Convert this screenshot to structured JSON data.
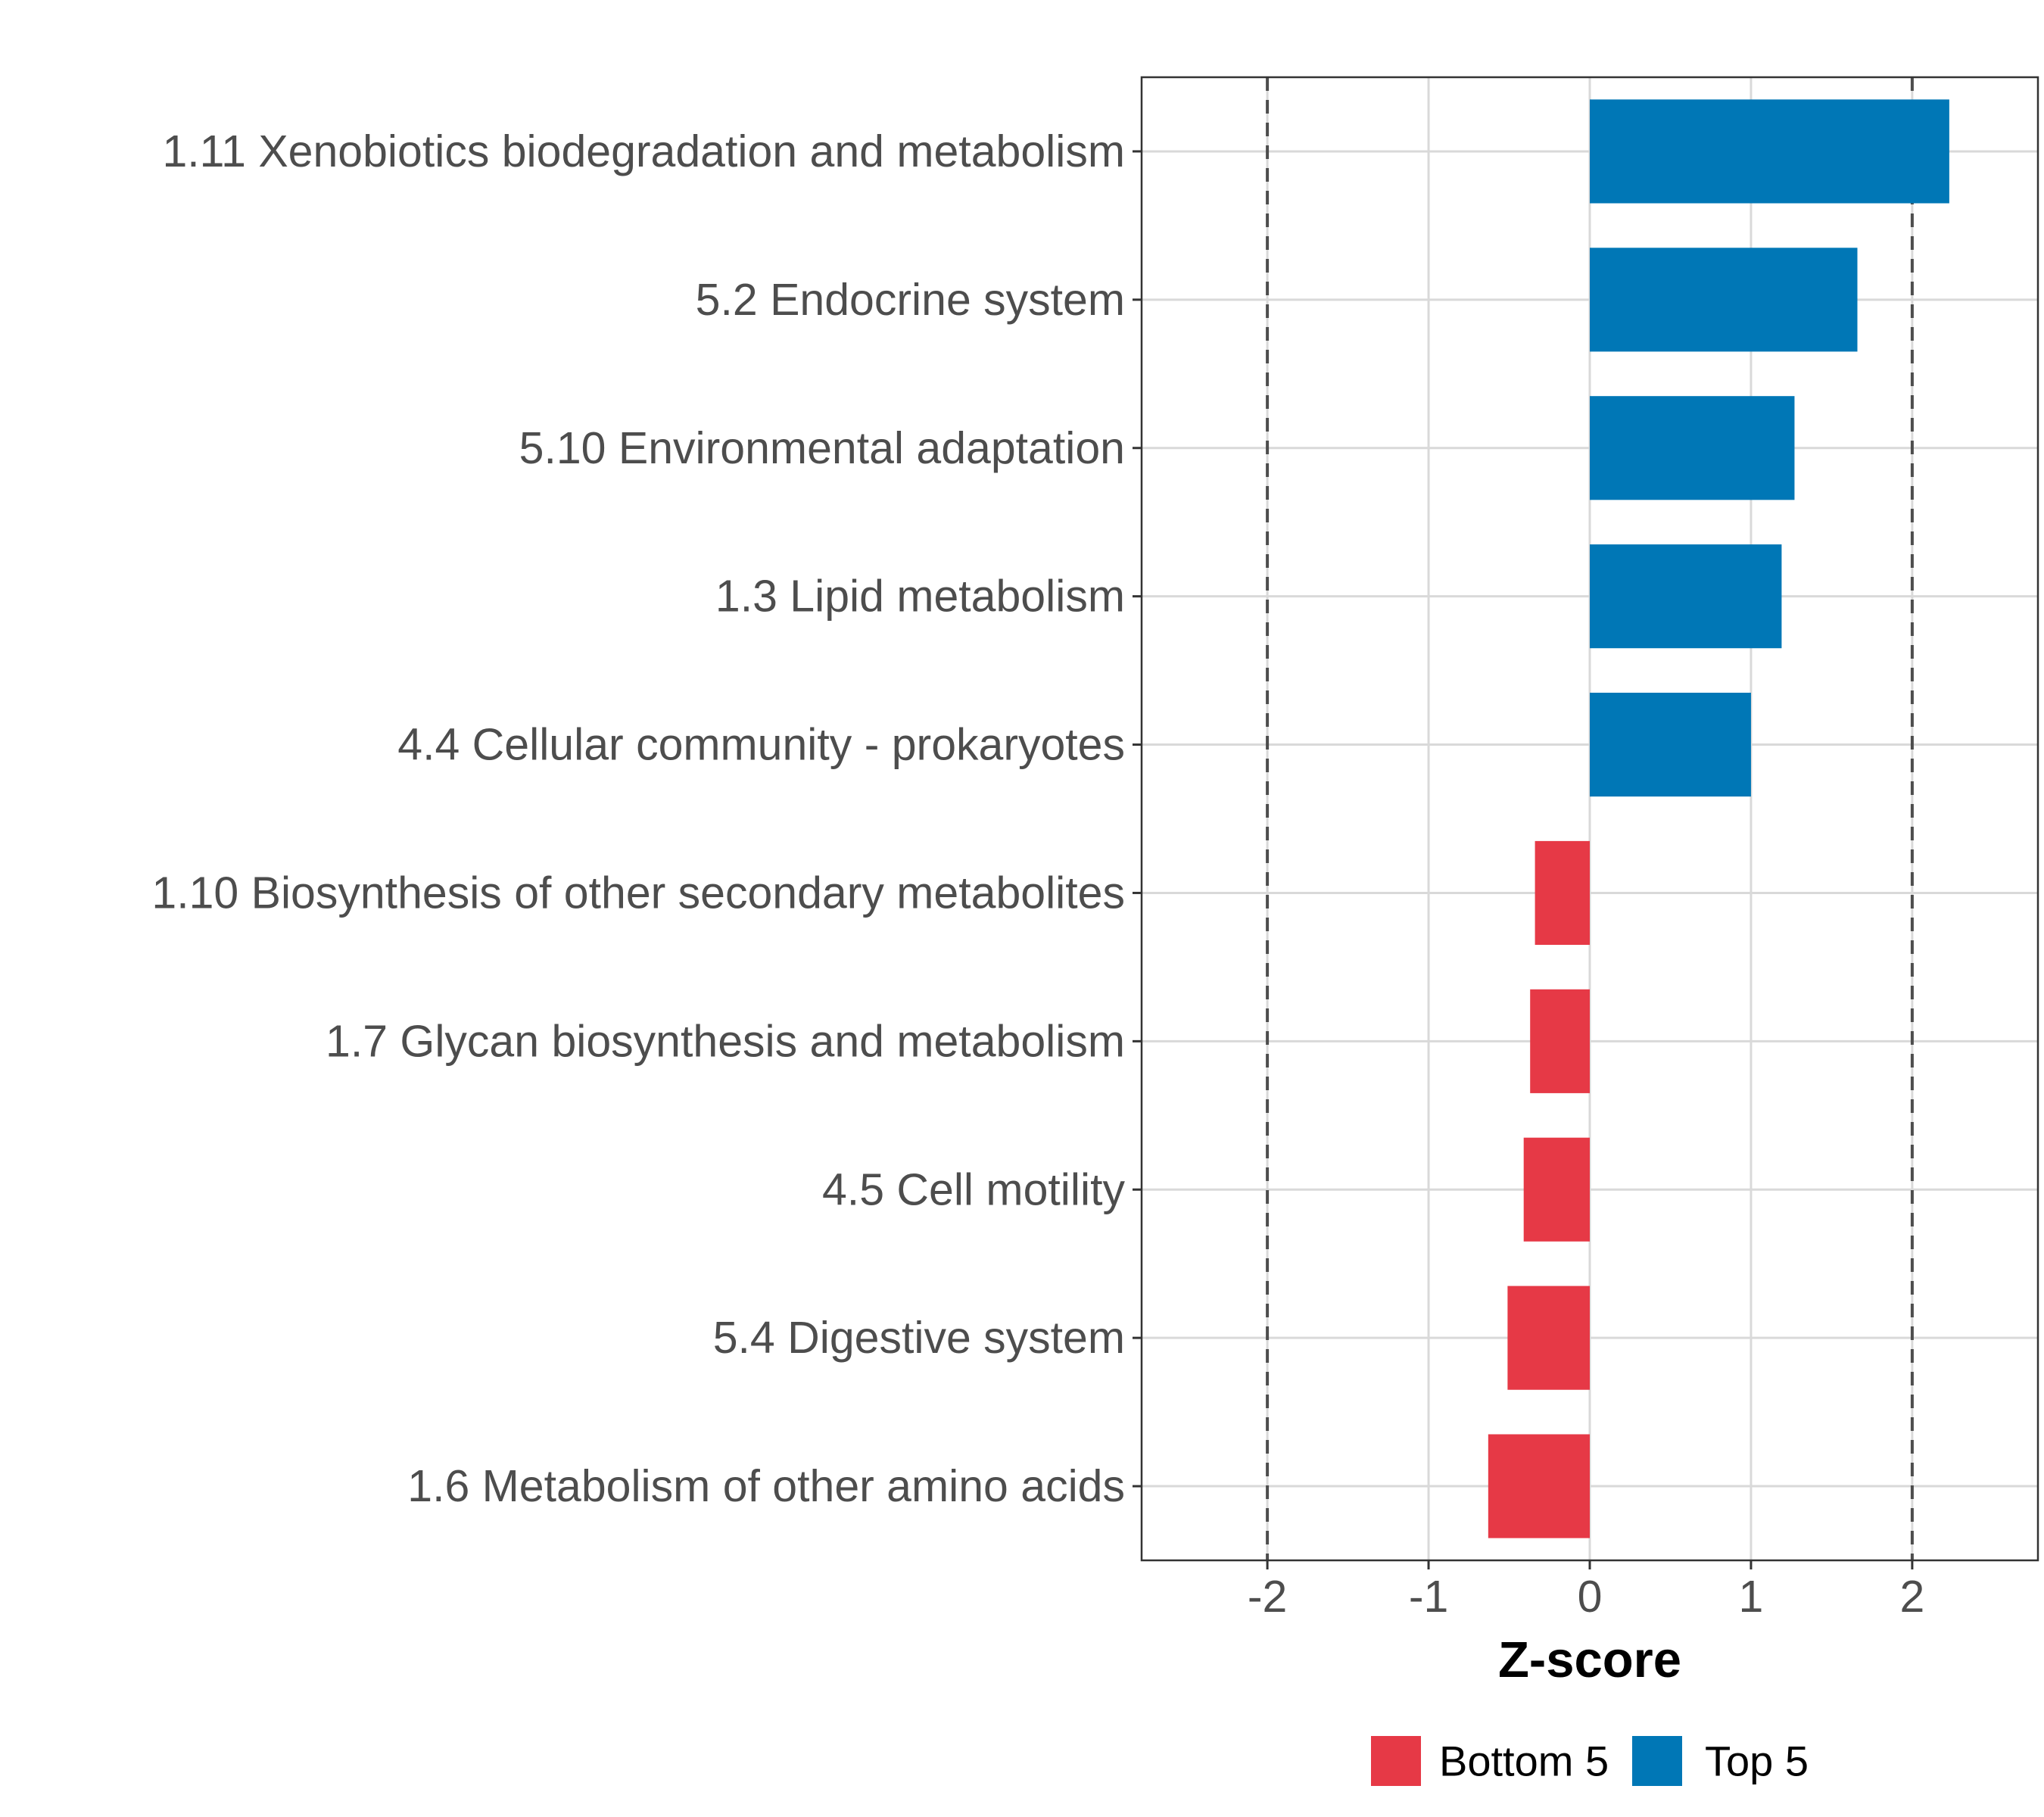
{
  "chart_data": {
    "type": "bar",
    "orientation": "horizontal",
    "categories": [
      "1.11 Xenobiotics biodegradation and metabolism",
      "5.2 Endocrine system",
      "5.10 Environmental adaptation",
      "1.3 Lipid metabolism",
      "4.4 Cellular community - prokaryotes",
      "1.10 Biosynthesis of other secondary metabolites",
      "1.7 Glycan biosynthesis and metabolism",
      "4.5 Cell motility",
      "5.4 Digestive system",
      "1.6 Metabolism of other amino acids"
    ],
    "values": [
      2.23,
      1.66,
      1.27,
      1.19,
      1.0,
      -0.34,
      -0.37,
      -0.41,
      -0.51,
      -0.63
    ],
    "groups": [
      "Top 5",
      "Top 5",
      "Top 5",
      "Top 5",
      "Top 5",
      "Bottom 5",
      "Bottom 5",
      "Bottom 5",
      "Bottom 5",
      "Bottom 5"
    ],
    "xlabel": "Z-score",
    "ylabel": "",
    "xlim": [
      -2.78,
      2.78
    ],
    "xticks": [
      -2,
      -1,
      0,
      1,
      2
    ],
    "xtick_labels": [
      "-2",
      "-1",
      "0",
      "1",
      "2"
    ],
    "reference_lines": [
      -2,
      2
    ],
    "grid": true,
    "legend": {
      "position": "bottom",
      "entries": [
        {
          "label": "Bottom 5",
          "color": "#e63946"
        },
        {
          "label": "Top 5",
          "color": "#0077b6"
        }
      ]
    },
    "colors": {
      "Top 5": "#0077b6",
      "Bottom 5": "#e63946"
    }
  }
}
